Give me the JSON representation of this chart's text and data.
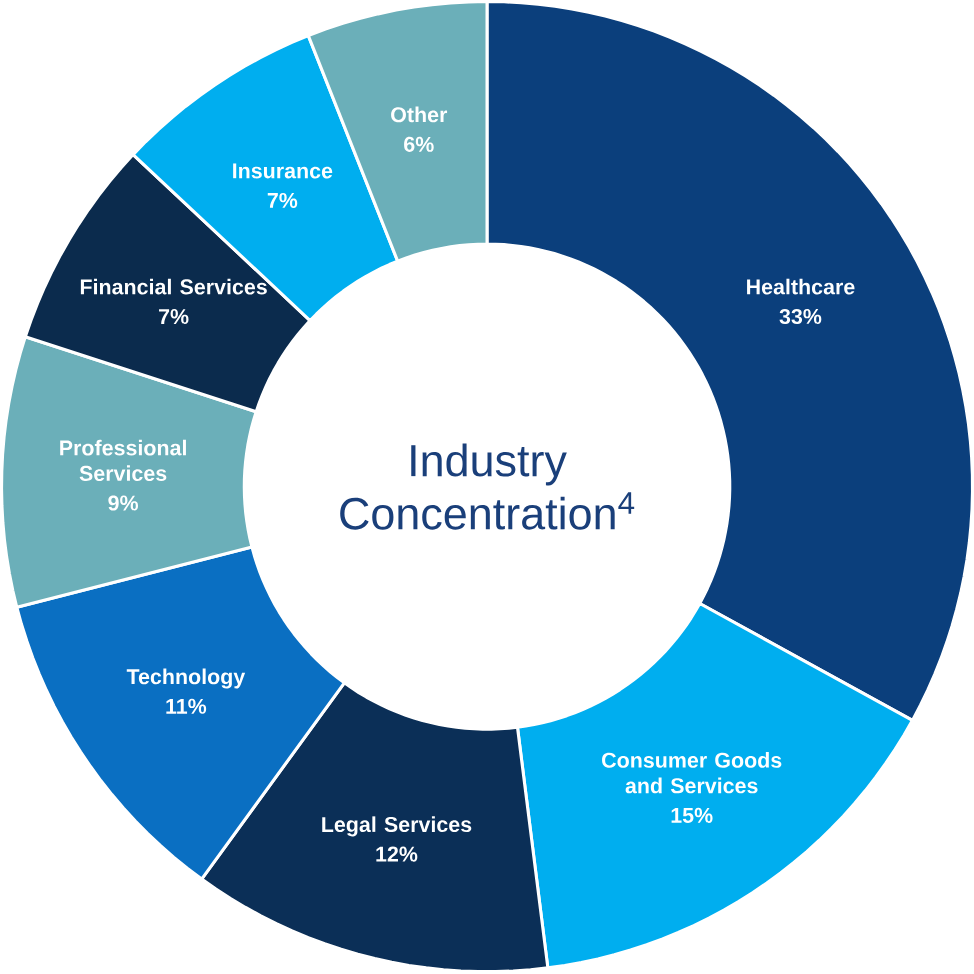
{
  "chart_data": {
    "type": "donut",
    "title": "Industry Concentration$^{4}$",
    "categories": [
      "Healthcare",
      "Consumer Goods and Services",
      "Legal Services",
      "Technology",
      "Professional Services",
      "Financial Services",
      "Insurance",
      "Other"
    ],
    "values": [
      33,
      15,
      12,
      11,
      9,
      7,
      7,
      6
    ],
    "colors": [
      "#0b3f7c",
      "#00aeef",
      "#0b2f57",
      "#0a6fc2",
      "#6bafb9",
      "#0b2b4d",
      "#00aeef",
      "#6bafb9"
    ],
    "value_labels": [
      "33%",
      "15%",
      "12%",
      "11%",
      "9%",
      "7%",
      "7%",
      "6%"
    ]
  }
}
